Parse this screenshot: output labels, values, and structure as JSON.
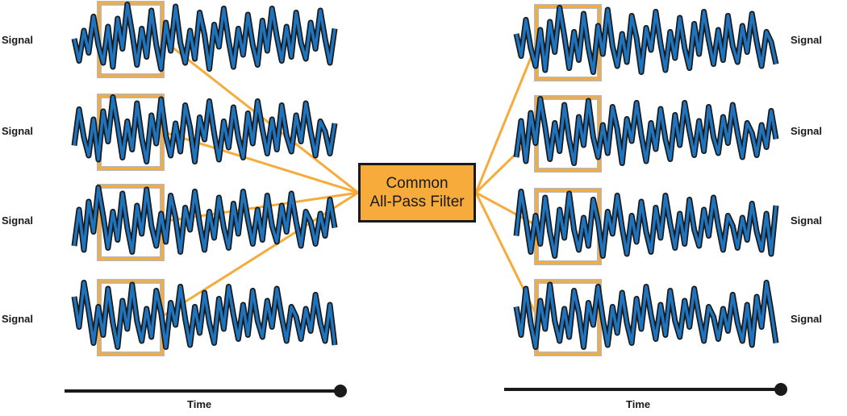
{
  "filter": {
    "line1": "Common",
    "line2": "All-Pass Filter"
  },
  "left_signals": [
    {
      "label": "Signal"
    },
    {
      "label": "Signal"
    },
    {
      "label": "Signal"
    },
    {
      "label": "Signal"
    }
  ],
  "right_signals": [
    {
      "label": "Signal"
    },
    {
      "label": "Signal"
    },
    {
      "label": "Signal"
    },
    {
      "label": "Signal"
    }
  ],
  "time_axis": {
    "left_label": "Time",
    "right_label": "Time"
  },
  "colors": {
    "signal": "#1f74c0",
    "highlight": "#f7ab3a",
    "frame": "#f7ab3a",
    "frame_back": "#b7b7b7",
    "ink": "#1a1a1a"
  }
}
